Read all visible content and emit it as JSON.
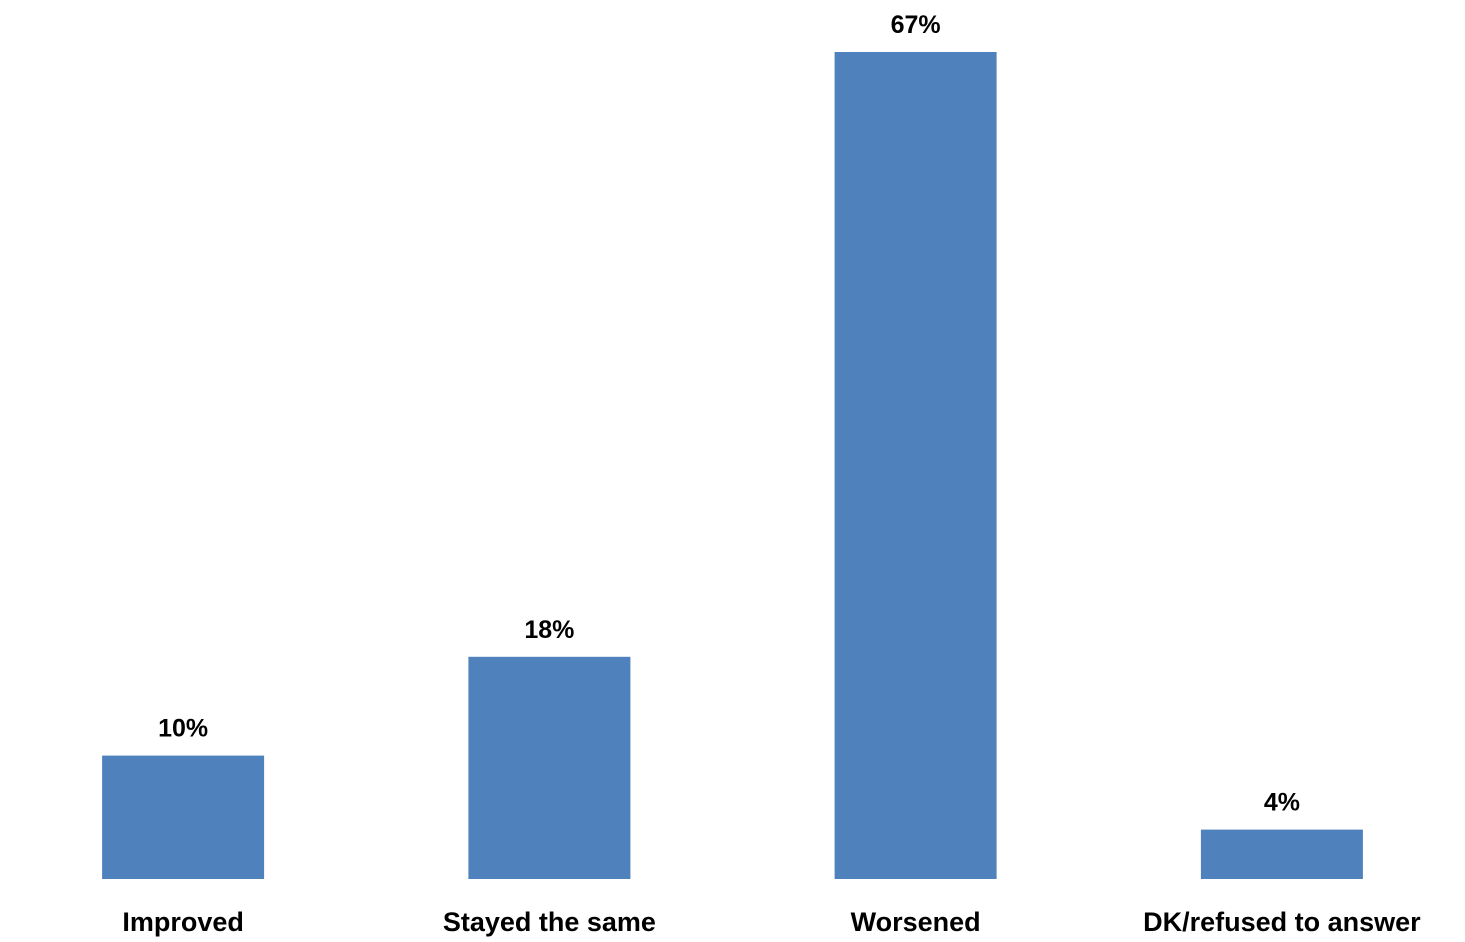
{
  "chart_data": {
    "type": "bar",
    "categories": [
      "Improved",
      "Stayed the same",
      "Worsened",
      "DK/refused to answer"
    ],
    "values": [
      10,
      18,
      67,
      4
    ],
    "data_labels": [
      "10%",
      "18%",
      "67%",
      "4%"
    ],
    "unit": "%",
    "ylim": [
      0,
      67
    ],
    "grid": false,
    "legend": "none",
    "colors": {
      "bar": "#4f81bd"
    }
  }
}
